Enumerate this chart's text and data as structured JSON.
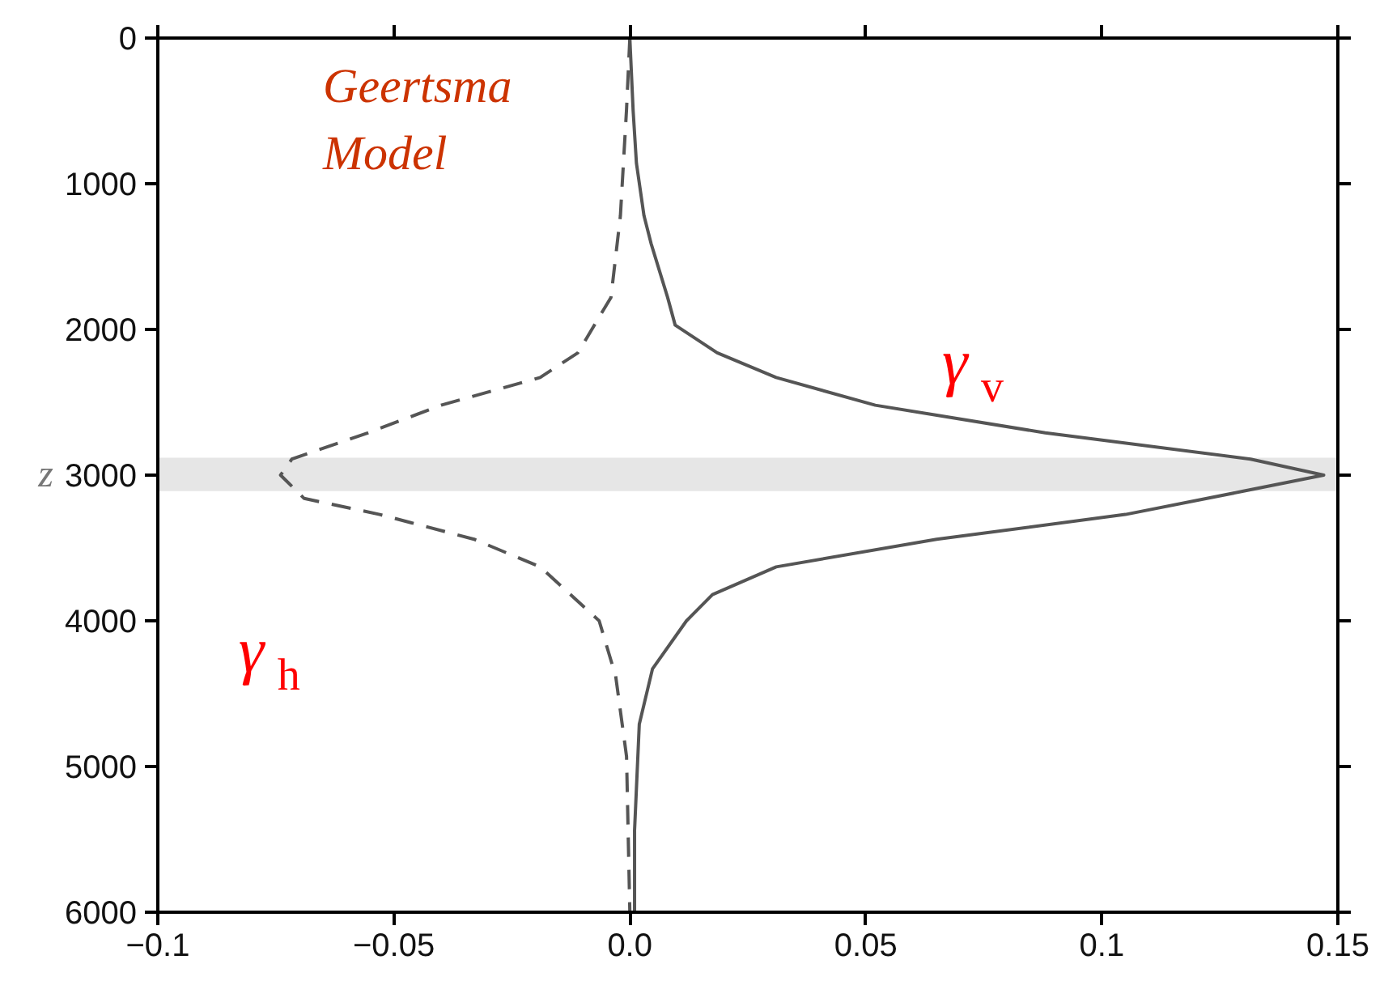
{
  "chart_data": {
    "type": "line",
    "ylabel": "z",
    "annotations": [
      "Geertsma\nModel"
    ],
    "xlim": [
      -0.1,
      0.15
    ],
    "xticks": [
      -0.1,
      -0.05,
      {
        "value": 0.0,
        "label": "0.0"
      },
      0.05,
      0.1,
      0.15
    ],
    "ylim": [
      6000,
      0
    ],
    "yticks": [
      0,
      1000,
      2000,
      3000,
      4000,
      5000,
      6000
    ],
    "grid": false,
    "bands": [
      {
        "axis": "y",
        "from": 2880,
        "to": 3110,
        "color": "#e6e6e6"
      }
    ],
    "series": [
      {
        "name": "γ$_{v}$",
        "color": "#555555",
        "line_style": "solid",
        "x": [
          0.0,
          0.0007,
          0.0014,
          0.003,
          0.0045,
          0.008,
          0.0096,
          0.0185,
          0.031,
          0.052,
          0.088,
          0.1315,
          0.147,
          0.13,
          0.105,
          0.065,
          0.031,
          0.0175,
          0.012,
          0.0048,
          0.002,
          0.001,
          0.001
        ],
        "values": [
          0,
          500,
          860,
          1220,
          1410,
          1780,
          1970,
          2160,
          2330,
          2520,
          2710,
          2890,
          3000,
          3110,
          3270,
          3440,
          3630,
          3820,
          4000,
          4330,
          4710,
          5440,
          6000
        ]
      },
      {
        "name": "γ$_{h}$",
        "color": "#555555",
        "line_style": "dashed",
        "x": [
          0.0,
          -0.0007,
          -0.002,
          -0.004,
          -0.011,
          -0.019,
          -0.04,
          -0.0555,
          -0.0716,
          -0.074,
          -0.069,
          -0.053,
          -0.033,
          -0.019,
          -0.0065,
          -0.003,
          -0.0007,
          0.0
        ],
        "values": [
          0,
          490,
          1220,
          1780,
          2160,
          2330,
          2520,
          2710,
          2890,
          3000,
          3160,
          3270,
          3440,
          3630,
          4000,
          4380,
          4930,
          6000
        ]
      }
    ]
  }
}
